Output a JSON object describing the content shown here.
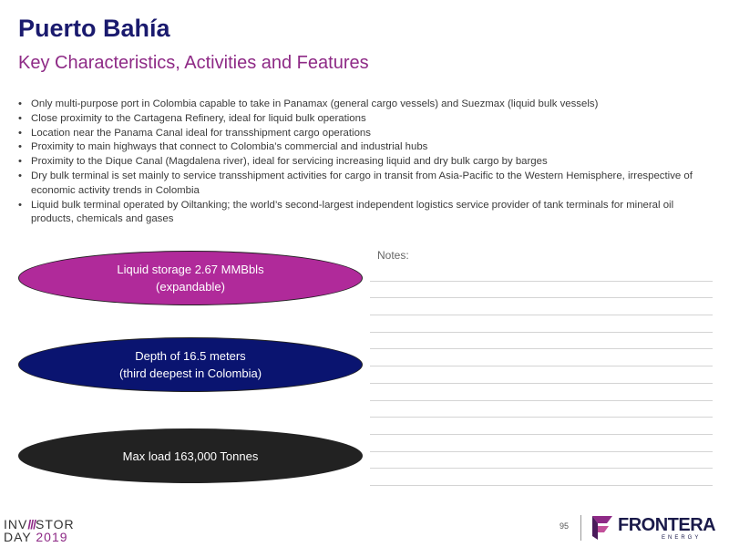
{
  "header": {
    "title": "Puerto Bahía",
    "subtitle": "Key Characteristics, Activities and Features"
  },
  "bullets": [
    "Only multi-purpose port in Colombia capable to take in Panamax (general cargo vessels) and Suezmax (liquid bulk vessels)",
    "Close proximity to the Cartagena Refinery, ideal for liquid bulk operations",
    "Location near the Panama Canal ideal for transshipment cargo operations",
    "Proximity to main highways that connect to Colombia’s commercial and industrial hubs",
    "Proximity to the Dique Canal (Magdalena river), ideal for servicing increasing liquid and dry bulk cargo by barges",
    "Dry bulk terminal is set mainly to service transshipment activities for cargo in transit from Asia-Pacific to the Western Hemisphere, irrespective of economic activity trends in Colombia",
    "Liquid bulk terminal operated by Oiltanking; the world’s second-largest independent logistics service provider of tank terminals for mineral oil products, chemicals and gases"
  ],
  "highlights": [
    {
      "text": "Liquid storage 2.67 MMBbls\n(expandable)",
      "color": "#b02a9a"
    },
    {
      "text": "Depth of 16.5 meters\n(third deepest in Colombia)",
      "color": "#0a1470"
    },
    {
      "text": "Max load 163,000 Tonnes",
      "color": "#222222"
    }
  ],
  "notes": {
    "label": "Notes:"
  },
  "footer": {
    "event_line1_a": "INV",
    "event_line1_slash": "///",
    "event_line1_b": "STOR",
    "event_line2_a": "DAY",
    "event_line2_year": "2019",
    "page_number": "95",
    "company_name": "FRONTERA",
    "company_sub": "ENERGY"
  }
}
